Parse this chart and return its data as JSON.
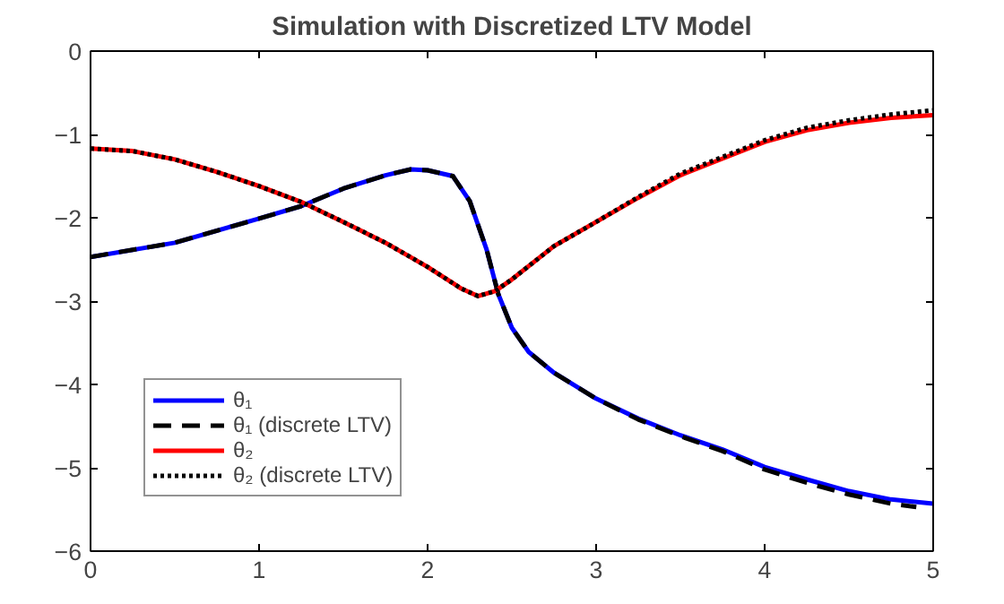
{
  "chart_data": {
    "type": "line",
    "title": "Simulation with Discretized LTV Model",
    "xlim": [
      0,
      5
    ],
    "ylim": [
      -6,
      0
    ],
    "xticks": [
      0,
      1,
      2,
      3,
      4,
      5
    ],
    "yticks": [
      -6,
      -5,
      -4,
      -3,
      -2,
      -1,
      0
    ],
    "grid": false,
    "legend": "bottom left",
    "series": [
      {
        "name": "θ₁",
        "color": "#0000ff",
        "line_style": "solid",
        "x": [
          0,
          0.5,
          1,
          1.25,
          1.5,
          1.75,
          1.9,
          2.0,
          2.15,
          2.25,
          2.35,
          2.42,
          2.5,
          2.6,
          2.75,
          3,
          3.25,
          3.5,
          3.75,
          4,
          4.25,
          4.5,
          4.75,
          5
        ],
        "values": [
          -2.47,
          -2.3,
          -2.01,
          -1.86,
          -1.65,
          -1.49,
          -1.42,
          -1.43,
          -1.5,
          -1.8,
          -2.38,
          -2.92,
          -3.32,
          -3.61,
          -3.86,
          -4.17,
          -4.41,
          -4.61,
          -4.78,
          -4.99,
          -5.14,
          -5.28,
          -5.38,
          -5.43
        ]
      },
      {
        "name": "θ₁ (discrete LTV)",
        "color": "#000000",
        "line_style": "dashed",
        "x": [
          0,
          0.5,
          1,
          1.25,
          1.5,
          1.75,
          1.9,
          2.0,
          2.15,
          2.25,
          2.35,
          2.42,
          2.5,
          2.6,
          2.75,
          3,
          3.25,
          3.5,
          3.75,
          4,
          4.25,
          4.5,
          4.75,
          4.9
        ],
        "values": [
          -2.47,
          -2.3,
          -2.01,
          -1.86,
          -1.65,
          -1.49,
          -1.42,
          -1.43,
          -1.5,
          -1.8,
          -2.38,
          -2.92,
          -3.32,
          -3.61,
          -3.86,
          -4.17,
          -4.42,
          -4.62,
          -4.8,
          -5.02,
          -5.18,
          -5.32,
          -5.43,
          -5.47
        ]
      },
      {
        "name": "θ₂",
        "color": "#ff0000",
        "line_style": "solid",
        "x": [
          0,
          0.25,
          0.5,
          0.75,
          1,
          1.25,
          1.5,
          1.75,
          2,
          2.2,
          2.3,
          2.4,
          2.5,
          2.75,
          3,
          3.25,
          3.5,
          3.75,
          4,
          4.25,
          4.5,
          4.75,
          5
        ],
        "values": [
          -1.17,
          -1.2,
          -1.3,
          -1.45,
          -1.62,
          -1.81,
          -2.05,
          -2.3,
          -2.59,
          -2.85,
          -2.94,
          -2.88,
          -2.74,
          -2.34,
          -2.05,
          -1.76,
          -1.49,
          -1.29,
          -1.09,
          -0.95,
          -0.86,
          -0.8,
          -0.77
        ]
      },
      {
        "name": "θ₂ (discrete LTV)",
        "color": "#000000",
        "line_style": "dotted",
        "x": [
          0,
          0.25,
          0.5,
          0.75,
          1,
          1.25,
          1.5,
          1.75,
          2,
          2.2,
          2.3,
          2.4,
          2.5,
          2.75,
          3,
          3.25,
          3.5,
          3.75,
          4,
          4.25,
          4.5,
          4.75,
          5
        ],
        "values": [
          -1.17,
          -1.2,
          -1.3,
          -1.45,
          -1.62,
          -1.81,
          -2.05,
          -2.3,
          -2.59,
          -2.85,
          -2.94,
          -2.88,
          -2.74,
          -2.34,
          -2.05,
          -1.75,
          -1.47,
          -1.27,
          -1.07,
          -0.92,
          -0.83,
          -0.76,
          -0.71
        ]
      }
    ]
  }
}
